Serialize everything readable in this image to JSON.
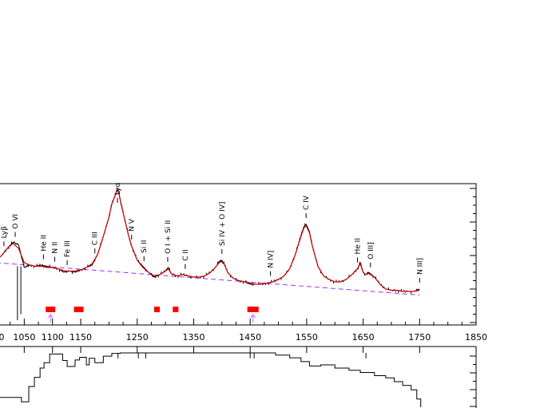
{
  "chart_data": [
    {
      "type": "line",
      "panel": "spectrum",
      "xlim": [
        1000,
        1850
      ],
      "x_ticks": [
        1050,
        1100,
        1150,
        1250,
        1350,
        1450,
        1550,
        1650,
        1750,
        1850
      ],
      "tick_labels": [
        "1050",
        "1100",
        "1150",
        "1250",
        "1350",
        "1450",
        "1550",
        "1650",
        "1750",
        "1850"
      ],
      "leftmost_partial_tick_label": "0",
      "ylim": [
        0,
        1
      ],
      "series": [
        {
          "role": "observed",
          "color": "#000000",
          "x": [
            1000,
            1010,
            1020,
            1030,
            1040,
            1050,
            1060,
            1070,
            1080,
            1090,
            1100,
            1110,
            1120,
            1130,
            1140,
            1150,
            1160,
            1170,
            1180,
            1190,
            1200,
            1205,
            1210,
            1215,
            1218,
            1222,
            1226,
            1230,
            1235,
            1240,
            1250,
            1260,
            1270,
            1280,
            1290,
            1300,
            1305,
            1310,
            1320,
            1330,
            1340,
            1350,
            1360,
            1370,
            1380,
            1390,
            1395,
            1400,
            1405,
            1410,
            1420,
            1430,
            1440,
            1450,
            1460,
            1470,
            1480,
            1490,
            1500,
            1510,
            1520,
            1530,
            1540,
            1545,
            1549,
            1555,
            1560,
            1570,
            1580,
            1590,
            1600,
            1610,
            1620,
            1630,
            1640,
            1645,
            1650,
            1655,
            1660,
            1670,
            1680,
            1690,
            1700,
            1710,
            1720,
            1730,
            1740,
            1750
          ],
          "y": [
            0.4,
            0.44,
            0.5,
            0.55,
            0.53,
            0.34,
            0.36,
            0.35,
            0.36,
            0.35,
            0.34,
            0.33,
            0.3,
            0.31,
            0.3,
            0.32,
            0.34,
            0.36,
            0.45,
            0.6,
            0.76,
            0.87,
            0.93,
            1.0,
            0.95,
            0.86,
            0.78,
            0.7,
            0.6,
            0.52,
            0.4,
            0.35,
            0.3,
            0.26,
            0.28,
            0.31,
            0.34,
            0.29,
            0.27,
            0.28,
            0.27,
            0.26,
            0.26,
            0.27,
            0.3,
            0.35,
            0.39,
            0.4,
            0.36,
            0.3,
            0.25,
            0.23,
            0.22,
            0.2,
            0.2,
            0.2,
            0.21,
            0.22,
            0.24,
            0.27,
            0.33,
            0.45,
            0.61,
            0.68,
            0.7,
            0.64,
            0.52,
            0.35,
            0.27,
            0.24,
            0.22,
            0.22,
            0.24,
            0.28,
            0.33,
            0.38,
            0.3,
            0.28,
            0.3,
            0.26,
            0.2,
            0.16,
            0.15,
            0.15,
            0.14,
            0.14,
            0.14,
            0.16
          ]
        },
        {
          "role": "fit",
          "color": "#cc0000",
          "x": [
            1000,
            1010,
            1020,
            1030,
            1040,
            1050,
            1060,
            1070,
            1080,
            1090,
            1100,
            1110,
            1120,
            1130,
            1140,
            1150,
            1160,
            1170,
            1180,
            1190,
            1200,
            1205,
            1210,
            1215,
            1218,
            1222,
            1226,
            1230,
            1235,
            1240,
            1250,
            1260,
            1270,
            1280,
            1290,
            1300,
            1305,
            1310,
            1320,
            1330,
            1340,
            1350,
            1360,
            1370,
            1380,
            1390,
            1395,
            1400,
            1405,
            1410,
            1420,
            1430,
            1440,
            1450,
            1460,
            1470,
            1480,
            1490,
            1500,
            1510,
            1520,
            1530,
            1540,
            1545,
            1549,
            1555,
            1560,
            1570,
            1580,
            1590,
            1600,
            1610,
            1620,
            1630,
            1640,
            1645,
            1650,
            1655,
            1660,
            1670,
            1680,
            1690,
            1700,
            1710,
            1720,
            1730,
            1740,
            1750
          ],
          "y": [
            0.4,
            0.44,
            0.5,
            0.54,
            0.5,
            0.38,
            0.36,
            0.35,
            0.35,
            0.34,
            0.34,
            0.33,
            0.31,
            0.31,
            0.31,
            0.32,
            0.34,
            0.37,
            0.45,
            0.6,
            0.76,
            0.87,
            0.93,
            0.99,
            0.95,
            0.86,
            0.78,
            0.7,
            0.6,
            0.52,
            0.4,
            0.34,
            0.3,
            0.27,
            0.28,
            0.31,
            0.33,
            0.29,
            0.27,
            0.28,
            0.27,
            0.26,
            0.26,
            0.27,
            0.3,
            0.35,
            0.38,
            0.39,
            0.36,
            0.3,
            0.25,
            0.23,
            0.22,
            0.21,
            0.2,
            0.2,
            0.21,
            0.22,
            0.24,
            0.27,
            0.33,
            0.45,
            0.6,
            0.67,
            0.69,
            0.63,
            0.52,
            0.35,
            0.27,
            0.24,
            0.22,
            0.22,
            0.24,
            0.28,
            0.33,
            0.37,
            0.3,
            0.28,
            0.29,
            0.26,
            0.2,
            0.16,
            0.15,
            0.15,
            0.14,
            0.14,
            0.14,
            0.15
          ]
        },
        {
          "role": "continuum",
          "color": "#9933ff",
          "dashed": true,
          "x": [
            1000,
            1750
          ],
          "y": [
            0.38,
            0.11
          ]
        }
      ],
      "absorption_drops": [
        {
          "x": 1038,
          "y_min": -0.1
        },
        {
          "x": 1044,
          "y_min": -0.05
        }
      ],
      "line_labels": [
        {
          "text": "Lyβ",
          "x": 1014
        },
        {
          "text": "O VI",
          "x": 1034
        },
        {
          "text": "He II",
          "x": 1084
        },
        {
          "text": "N II",
          "x": 1104
        },
        {
          "text": "Fe III",
          "x": 1126
        },
        {
          "text": "C III",
          "x": 1175
        },
        {
          "text": "Lyα",
          "x": 1215
        },
        {
          "text": "N V",
          "x": 1240
        },
        {
          "text": "Si II",
          "x": 1262
        },
        {
          "text": "O I + Si II",
          "x": 1304
        },
        {
          "text": "C II",
          "x": 1335
        },
        {
          "text": "Si IV + O IV]",
          "x": 1400
        },
        {
          "text": "N IV]",
          "x": 1486
        },
        {
          "text": "C IV",
          "x": 1549
        },
        {
          "text": "He II",
          "x": 1640
        },
        {
          "text": "O III]",
          "x": 1663
        },
        {
          "text": "N III]",
          "x": 1750
        }
      ],
      "windows": [
        {
          "x0": 1088,
          "x1": 1105,
          "marker": true
        },
        {
          "x0": 1138,
          "x1": 1155,
          "marker": false
        },
        {
          "x0": 1280,
          "x1": 1290,
          "marker": false
        },
        {
          "x0": 1313,
          "x1": 1323,
          "marker": false
        },
        {
          "x0": 1445,
          "x1": 1465,
          "marker": true
        }
      ],
      "window_color": "#ff0000",
      "marker_color": "#cc66ff"
    },
    {
      "type": "line",
      "panel": "coverage",
      "xlim": [
        1000,
        1850
      ],
      "ylim": [
        0,
        1
      ],
      "series": [
        {
          "role": "coverage",
          "color": "#000000",
          "step": true,
          "x": [
            1000,
            1030,
            1045,
            1058,
            1068,
            1078,
            1085,
            1095,
            1118,
            1126,
            1140,
            1148,
            1160,
            1165,
            1175,
            1190,
            1205,
            1220,
            1495,
            1520,
            1540,
            1555,
            1575,
            1600,
            1625,
            1645,
            1670,
            1690,
            1705,
            1720,
            1735,
            1745,
            1752
          ],
          "y": [
            0.18,
            0.18,
            0.1,
            0.38,
            0.55,
            0.72,
            0.82,
            0.98,
            0.86,
            0.75,
            0.87,
            0.92,
            0.78,
            0.9,
            0.82,
            0.94,
            0.99,
            1.0,
            0.96,
            0.91,
            0.84,
            0.76,
            0.78,
            0.72,
            0.68,
            0.64,
            0.58,
            0.54,
            0.47,
            0.4,
            0.32,
            0.15,
            0.0
          ]
        }
      ],
      "spikes": [
        1216,
        1252,
        1265,
        1450,
        1457,
        1655
      ]
    }
  ]
}
